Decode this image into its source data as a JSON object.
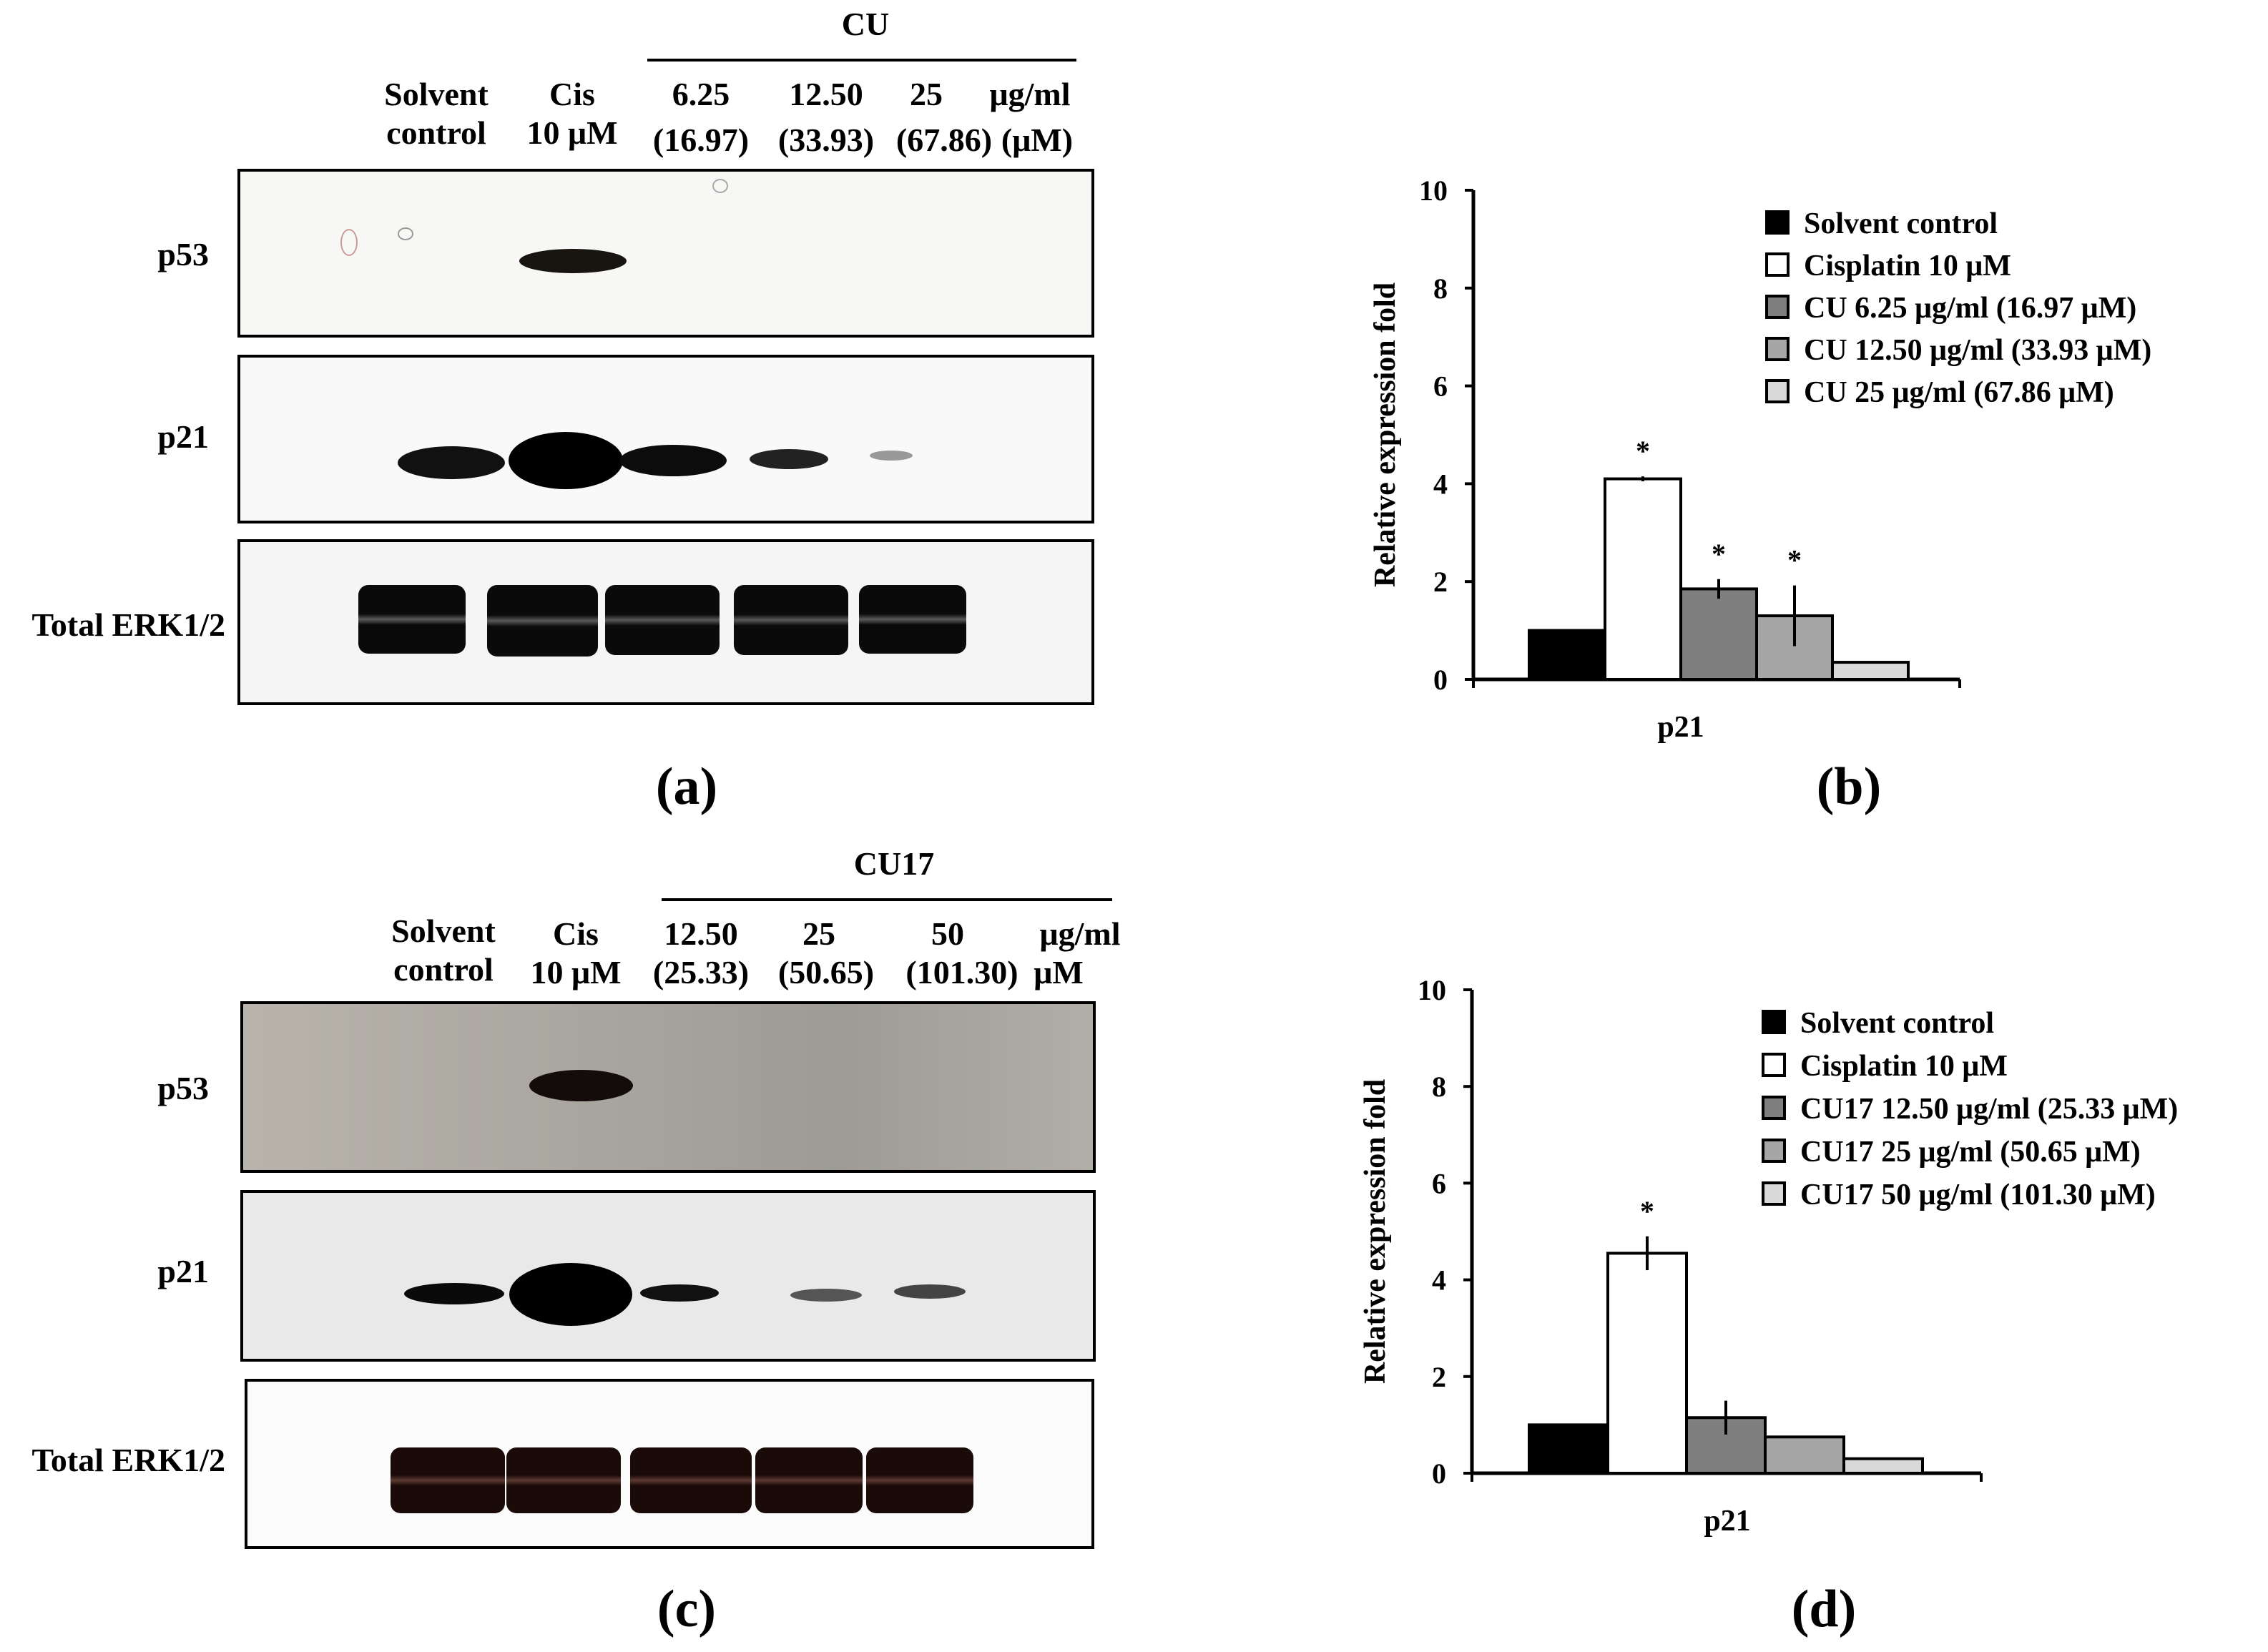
{
  "panels": [
    {
      "id": "a",
      "panel_label": "(a)",
      "group_label": "CU",
      "lane_labels": [
        [
          "Solvent",
          "control"
        ],
        [
          "Cis",
          "10 μM"
        ],
        [
          "6.25",
          "(16.97)"
        ],
        [
          "12.50",
          "(33.93)"
        ],
        [
          "25",
          "(67.86)"
        ],
        [
          "μg/ml",
          "(μM)"
        ]
      ],
      "rows": [
        "p53",
        "p21",
        "Total ERK1/2"
      ]
    },
    {
      "id": "c",
      "panel_label": "(c)",
      "group_label": "CU17",
      "lane_labels": [
        [
          "Solvent",
          "control"
        ],
        [
          "Cis",
          "10 μM"
        ],
        [
          "12.50",
          "(25.33)"
        ],
        [
          "25",
          "(50.65)"
        ],
        [
          "50",
          "(101.30)"
        ],
        [
          "μg/ml",
          "μM"
        ]
      ],
      "rows": [
        "p53",
        "p21",
        "Total ERK1/2"
      ]
    }
  ],
  "chart_labels": {
    "b": "(b)",
    "d": "(d)"
  },
  "chart_data": [
    {
      "type": "bar",
      "panel": "(b)",
      "categories": [
        "p21"
      ],
      "xlabel": "p21",
      "ylabel": "Relative expression fold",
      "ylim": [
        0,
        10
      ],
      "yticks": [
        0,
        2,
        4,
        6,
        8,
        10
      ],
      "grid": false,
      "legend_position": "top-right",
      "series": [
        {
          "name": "Solvent control",
          "values": [
            1.0
          ],
          "error": [
            0
          ],
          "significant": false,
          "color": "#000000"
        },
        {
          "name": "Cisplatin 10 μM",
          "values": [
            4.1
          ],
          "error": [
            0.05
          ],
          "significant": true,
          "color": "#ffffff"
        },
        {
          "name": "CU 6.25 μg/ml (16.97 μM)",
          "values": [
            1.85
          ],
          "error": [
            0.2
          ],
          "significant": true,
          "color": "#7f7f7f"
        },
        {
          "name": "CU 12.50 μg/ml (33.93 μM)",
          "values": [
            1.3
          ],
          "error": [
            0.62
          ],
          "significant": true,
          "color": "#a6a6a6"
        },
        {
          "name": "CU 25 μg/ml (67.86 μM)",
          "values": [
            0.35
          ],
          "error": [
            0
          ],
          "significant": false,
          "color": "#d9d9d9"
        }
      ],
      "significance_marker": "*"
    },
    {
      "type": "bar",
      "panel": "(d)",
      "categories": [
        "p21"
      ],
      "xlabel": "p21",
      "ylabel": "Relative expression fold",
      "ylim": [
        0,
        10
      ],
      "yticks": [
        0,
        2,
        4,
        6,
        8,
        10
      ],
      "grid": false,
      "legend_position": "top-right",
      "series": [
        {
          "name": "Solvent control",
          "values": [
            1.0
          ],
          "error": [
            0
          ],
          "significant": false,
          "color": "#000000"
        },
        {
          "name": "Cisplatin 10 μM",
          "values": [
            4.55
          ],
          "error": [
            0.35
          ],
          "significant": true,
          "color": "#ffffff"
        },
        {
          "name": "CU17 12.50 μg/ml (25.33 μM)",
          "values": [
            1.15
          ],
          "error": [
            0.35
          ],
          "significant": false,
          "color": "#7f7f7f"
        },
        {
          "name": "CU17 25 μg/ml (50.65 μM)",
          "values": [
            0.75
          ],
          "error": [
            0
          ],
          "significant": false,
          "color": "#a6a6a6"
        },
        {
          "name": "CU17 50 μg/ml (101.30 μM)",
          "values": [
            0.3
          ],
          "error": [
            0
          ],
          "significant": false,
          "color": "#d9d9d9"
        }
      ],
      "significance_marker": "*"
    }
  ]
}
